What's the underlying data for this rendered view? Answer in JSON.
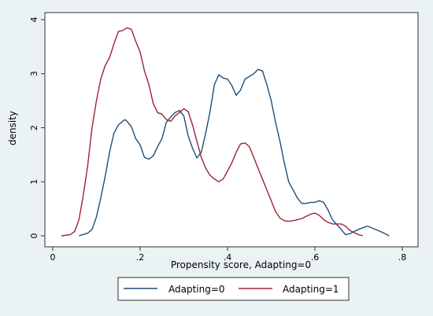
{
  "chart_data": {
    "type": "line",
    "title": "",
    "xlabel": "Propensity score, Adapting=0",
    "ylabel": "density",
    "xlim": [
      0,
      0.8
    ],
    "ylim": [
      0,
      4
    ],
    "xticks": [
      0,
      0.2,
      0.4,
      0.6,
      0.8
    ],
    "xtick_labels": [
      "0",
      ".2",
      ".4",
      ".6",
      ".8"
    ],
    "yticks": [
      0,
      1,
      2,
      3,
      4
    ],
    "ytick_labels": [
      "0",
      "1",
      "2",
      "3",
      "4"
    ],
    "grid": false,
    "legend_position": "bottom",
    "series": [
      {
        "name": "Adapting=0",
        "color": "#1a4f7a",
        "points": [
          [
            0.06,
            0.0
          ],
          [
            0.08,
            0.05
          ],
          [
            0.09,
            0.12
          ],
          [
            0.1,
            0.35
          ],
          [
            0.11,
            0.7
          ],
          [
            0.12,
            1.1
          ],
          [
            0.13,
            1.55
          ],
          [
            0.14,
            1.9
          ],
          [
            0.15,
            2.05
          ],
          [
            0.16,
            2.12
          ],
          [
            0.165,
            2.15
          ],
          [
            0.17,
            2.12
          ],
          [
            0.18,
            2.02
          ],
          [
            0.19,
            1.8
          ],
          [
            0.2,
            1.68
          ],
          [
            0.21,
            1.45
          ],
          [
            0.22,
            1.42
          ],
          [
            0.23,
            1.48
          ],
          [
            0.24,
            1.65
          ],
          [
            0.25,
            1.8
          ],
          [
            0.26,
            2.1
          ],
          [
            0.27,
            2.2
          ],
          [
            0.28,
            2.28
          ],
          [
            0.29,
            2.32
          ],
          [
            0.3,
            2.22
          ],
          [
            0.31,
            1.85
          ],
          [
            0.32,
            1.62
          ],
          [
            0.33,
            1.44
          ],
          [
            0.34,
            1.55
          ],
          [
            0.35,
            1.9
          ],
          [
            0.36,
            2.3
          ],
          [
            0.37,
            2.8
          ],
          [
            0.38,
            2.98
          ],
          [
            0.39,
            2.92
          ],
          [
            0.4,
            2.9
          ],
          [
            0.41,
            2.78
          ],
          [
            0.42,
            2.6
          ],
          [
            0.43,
            2.7
          ],
          [
            0.44,
            2.9
          ],
          [
            0.45,
            2.95
          ],
          [
            0.46,
            3.0
          ],
          [
            0.47,
            3.08
          ],
          [
            0.48,
            3.05
          ],
          [
            0.49,
            2.8
          ],
          [
            0.5,
            2.5
          ],
          [
            0.51,
            2.1
          ],
          [
            0.52,
            1.75
          ],
          [
            0.53,
            1.35
          ],
          [
            0.54,
            1.0
          ],
          [
            0.55,
            0.85
          ],
          [
            0.56,
            0.7
          ],
          [
            0.57,
            0.6
          ],
          [
            0.58,
            0.6
          ],
          [
            0.59,
            0.62
          ],
          [
            0.6,
            0.62
          ],
          [
            0.61,
            0.65
          ],
          [
            0.62,
            0.62
          ],
          [
            0.63,
            0.48
          ],
          [
            0.64,
            0.3
          ],
          [
            0.66,
            0.12
          ],
          [
            0.67,
            0.02
          ],
          [
            0.68,
            0.04
          ],
          [
            0.7,
            0.12
          ],
          [
            0.72,
            0.18
          ],
          [
            0.75,
            0.08
          ],
          [
            0.77,
            0.0
          ]
        ]
      },
      {
        "name": "Adapting=1",
        "color": "#9b2533",
        "points": [
          [
            0.02,
            0.0
          ],
          [
            0.04,
            0.02
          ],
          [
            0.05,
            0.08
          ],
          [
            0.06,
            0.3
          ],
          [
            0.07,
            0.75
          ],
          [
            0.08,
            1.3
          ],
          [
            0.09,
            2.0
          ],
          [
            0.1,
            2.5
          ],
          [
            0.11,
            2.9
          ],
          [
            0.12,
            3.15
          ],
          [
            0.13,
            3.3
          ],
          [
            0.14,
            3.55
          ],
          [
            0.15,
            3.78
          ],
          [
            0.16,
            3.8
          ],
          [
            0.17,
            3.85
          ],
          [
            0.18,
            3.82
          ],
          [
            0.19,
            3.6
          ],
          [
            0.2,
            3.4
          ],
          [
            0.21,
            3.05
          ],
          [
            0.22,
            2.8
          ],
          [
            0.23,
            2.45
          ],
          [
            0.24,
            2.28
          ],
          [
            0.25,
            2.25
          ],
          [
            0.26,
            2.15
          ],
          [
            0.27,
            2.12
          ],
          [
            0.28,
            2.22
          ],
          [
            0.29,
            2.28
          ],
          [
            0.3,
            2.35
          ],
          [
            0.31,
            2.3
          ],
          [
            0.32,
            2.05
          ],
          [
            0.33,
            1.75
          ],
          [
            0.34,
            1.45
          ],
          [
            0.35,
            1.25
          ],
          [
            0.36,
            1.12
          ],
          [
            0.37,
            1.05
          ],
          [
            0.38,
            1.0
          ],
          [
            0.39,
            1.05
          ],
          [
            0.4,
            1.2
          ],
          [
            0.41,
            1.35
          ],
          [
            0.42,
            1.55
          ],
          [
            0.43,
            1.7
          ],
          [
            0.44,
            1.72
          ],
          [
            0.45,
            1.65
          ],
          [
            0.46,
            1.45
          ],
          [
            0.47,
            1.25
          ],
          [
            0.48,
            1.05
          ],
          [
            0.49,
            0.85
          ],
          [
            0.5,
            0.65
          ],
          [
            0.51,
            0.45
          ],
          [
            0.52,
            0.33
          ],
          [
            0.53,
            0.28
          ],
          [
            0.54,
            0.27
          ],
          [
            0.55,
            0.28
          ],
          [
            0.56,
            0.3
          ],
          [
            0.57,
            0.32
          ],
          [
            0.58,
            0.36
          ],
          [
            0.59,
            0.4
          ],
          [
            0.6,
            0.42
          ],
          [
            0.61,
            0.38
          ],
          [
            0.62,
            0.3
          ],
          [
            0.63,
            0.25
          ],
          [
            0.64,
            0.22
          ],
          [
            0.65,
            0.22
          ],
          [
            0.66,
            0.22
          ],
          [
            0.67,
            0.18
          ],
          [
            0.68,
            0.1
          ],
          [
            0.7,
            0.02
          ],
          [
            0.71,
            0.0
          ]
        ]
      }
    ]
  }
}
